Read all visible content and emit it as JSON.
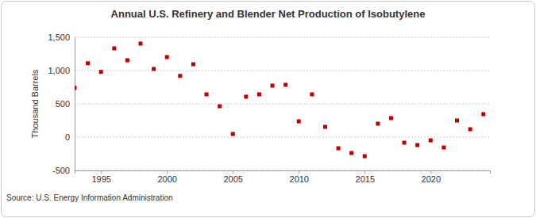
{
  "chart_data": {
    "type": "scatter",
    "title": "Annual U.S. Refinery and Blender Net Production of Isobutylene",
    "y_label": "Thousand Barrels",
    "source": "Source: U.S. Energy Information Administration",
    "x": [
      1993,
      1994,
      1995,
      1996,
      1997,
      1998,
      1999,
      2000,
      2001,
      2002,
      2003,
      2004,
      2005,
      2006,
      2007,
      2008,
      2009,
      2010,
      2011,
      2012,
      2013,
      2014,
      2015,
      2016,
      2017,
      2018,
      2019,
      2020,
      2021,
      2022,
      2023,
      2024
    ],
    "values": [
      740,
      1110,
      980,
      1333,
      1155,
      1405,
      1024,
      1202,
      920,
      1095,
      643,
      464,
      48,
      607,
      643,
      774,
      786,
      238,
      643,
      155,
      -167,
      -238,
      -286,
      202,
      286,
      -83,
      -119,
      -48,
      -155,
      250,
      119,
      345
    ],
    "color": "#c00000",
    "marker": "square",
    "xlim": [
      1993,
      2024.5
    ],
    "xticks": [
      1995,
      2000,
      2005,
      2010,
      2015,
      2020
    ],
    "ylim": [
      -500,
      1500
    ],
    "yticks": [
      -500,
      0,
      {
        "value": 500,
        "label": "500"
      },
      {
        "value": 1000,
        "label": "1,000"
      },
      {
        "value": 1500,
        "label": "1,500"
      }
    ],
    "grid": true
  }
}
